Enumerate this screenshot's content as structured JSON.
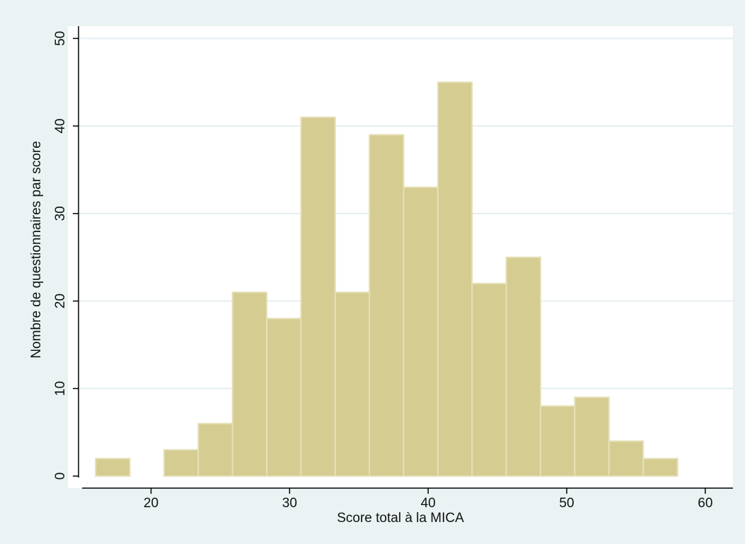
{
  "chart_data": {
    "type": "bar",
    "subtype": "histogram",
    "xlabel": "Score total à la MICA",
    "ylabel": "Nombre de questionnaires par score",
    "xlim": [
      14,
      62
    ],
    "ylim": [
      0,
      51
    ],
    "xticks": [
      20,
      30,
      40,
      50,
      60
    ],
    "yticks": [
      0,
      10,
      20,
      30,
      40,
      50
    ],
    "bin_width": 2.47,
    "bins": [
      {
        "start": 16.0,
        "end": 18.47,
        "value": 2
      },
      {
        "start": 18.47,
        "end": 20.94,
        "value": 0
      },
      {
        "start": 20.94,
        "end": 23.41,
        "value": 3
      },
      {
        "start": 23.41,
        "end": 25.88,
        "value": 6
      },
      {
        "start": 25.88,
        "end": 28.35,
        "value": 21
      },
      {
        "start": 28.35,
        "end": 30.82,
        "value": 18
      },
      {
        "start": 30.82,
        "end": 33.29,
        "value": 41
      },
      {
        "start": 33.29,
        "end": 35.76,
        "value": 21
      },
      {
        "start": 35.76,
        "end": 38.23,
        "value": 39
      },
      {
        "start": 38.23,
        "end": 40.7,
        "value": 33
      },
      {
        "start": 40.7,
        "end": 43.17,
        "value": 45
      },
      {
        "start": 43.17,
        "end": 45.64,
        "value": 22
      },
      {
        "start": 45.64,
        "end": 48.11,
        "value": 25
      },
      {
        "start": 48.11,
        "end": 50.58,
        "value": 8
      },
      {
        "start": 50.58,
        "end": 53.05,
        "value": 9
      },
      {
        "start": 53.05,
        "end": 55.52,
        "value": 4
      },
      {
        "start": 55.52,
        "end": 58.0,
        "value": 2
      }
    ],
    "grid": true,
    "colors": {
      "background": "#eaf2f3",
      "plot_background": "#ffffff",
      "bar_fill": "#d4cc91",
      "bar_stroke": "#e6e0b8",
      "grid": "#e3eef0",
      "axis": "#000000"
    }
  }
}
